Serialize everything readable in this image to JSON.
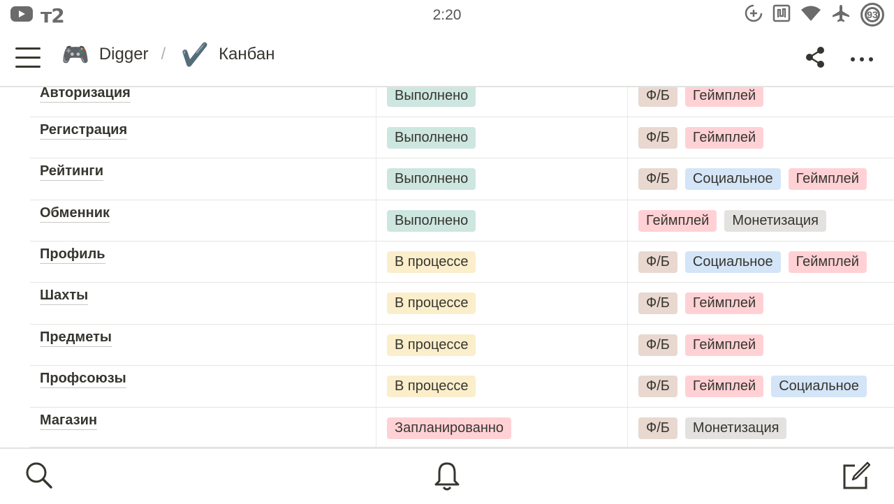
{
  "status_bar": {
    "time": "2:20",
    "carrier": "т2",
    "battery": "93",
    "icons": [
      "youtube-icon",
      "data-saver-icon",
      "nfc-icon",
      "wifi-icon",
      "airplane-icon"
    ]
  },
  "header": {
    "breadcrumbs": [
      {
        "icon": "🎮",
        "label": "Digger"
      },
      {
        "icon": "✔️",
        "label": "Канбан"
      }
    ],
    "separator": "/",
    "icons": [
      "menu-icon",
      "share-icon",
      "more-icon"
    ]
  },
  "table": {
    "rows": [
      {
        "name": "Авторизация",
        "status": "Выполнено",
        "status_color": "#cde6e0",
        "tags": [
          "Ф/Б",
          "Геймплей"
        ]
      },
      {
        "name": "Регистрация",
        "status": "Выполнено",
        "status_color": "#cde6e0",
        "tags": [
          "Ф/Б",
          "Геймплей"
        ]
      },
      {
        "name": "Рейтинги",
        "status": "Выполнено",
        "status_color": "#cde6e0",
        "tags": [
          "Ф/Б",
          "Социальное",
          "Геймплей"
        ]
      },
      {
        "name": "Обменник",
        "status": "Выполнено",
        "status_color": "#cde6e0",
        "tags": [
          "Геймплей",
          "Монетизация"
        ]
      },
      {
        "name": "Профиль",
        "status": "В процессе",
        "status_color": "#fbeecb",
        "tags": [
          "Ф/Б",
          "Социальное",
          "Геймплей"
        ]
      },
      {
        "name": "Шахты",
        "status": "В процессе",
        "status_color": "#fbeecb",
        "tags": [
          "Ф/Б",
          "Геймплей"
        ]
      },
      {
        "name": "Предметы",
        "status": "В процессе",
        "status_color": "#fbeecb",
        "tags": [
          "Ф/Б",
          "Геймплей"
        ]
      },
      {
        "name": "Профсоюзы",
        "status": "В процессе",
        "status_color": "#fbeecb",
        "tags": [
          "Ф/Б",
          "Геймплей",
          "Социальное"
        ]
      },
      {
        "name": "Магазин",
        "status": "Запланированно",
        "status_color": "#ffd1d5",
        "tags": [
          "Ф/Б",
          "Монетизация"
        ]
      }
    ],
    "tag_colors": {
      "Ф/Б": "#e8d8d0",
      "Геймплей": "#ffd1d5",
      "Социальное": "#d3e5f7",
      "Монетизация": "#e3e2e0"
    }
  },
  "bottom_bar": {
    "icons": [
      "search-icon",
      "bell-icon",
      "compose-icon"
    ]
  }
}
